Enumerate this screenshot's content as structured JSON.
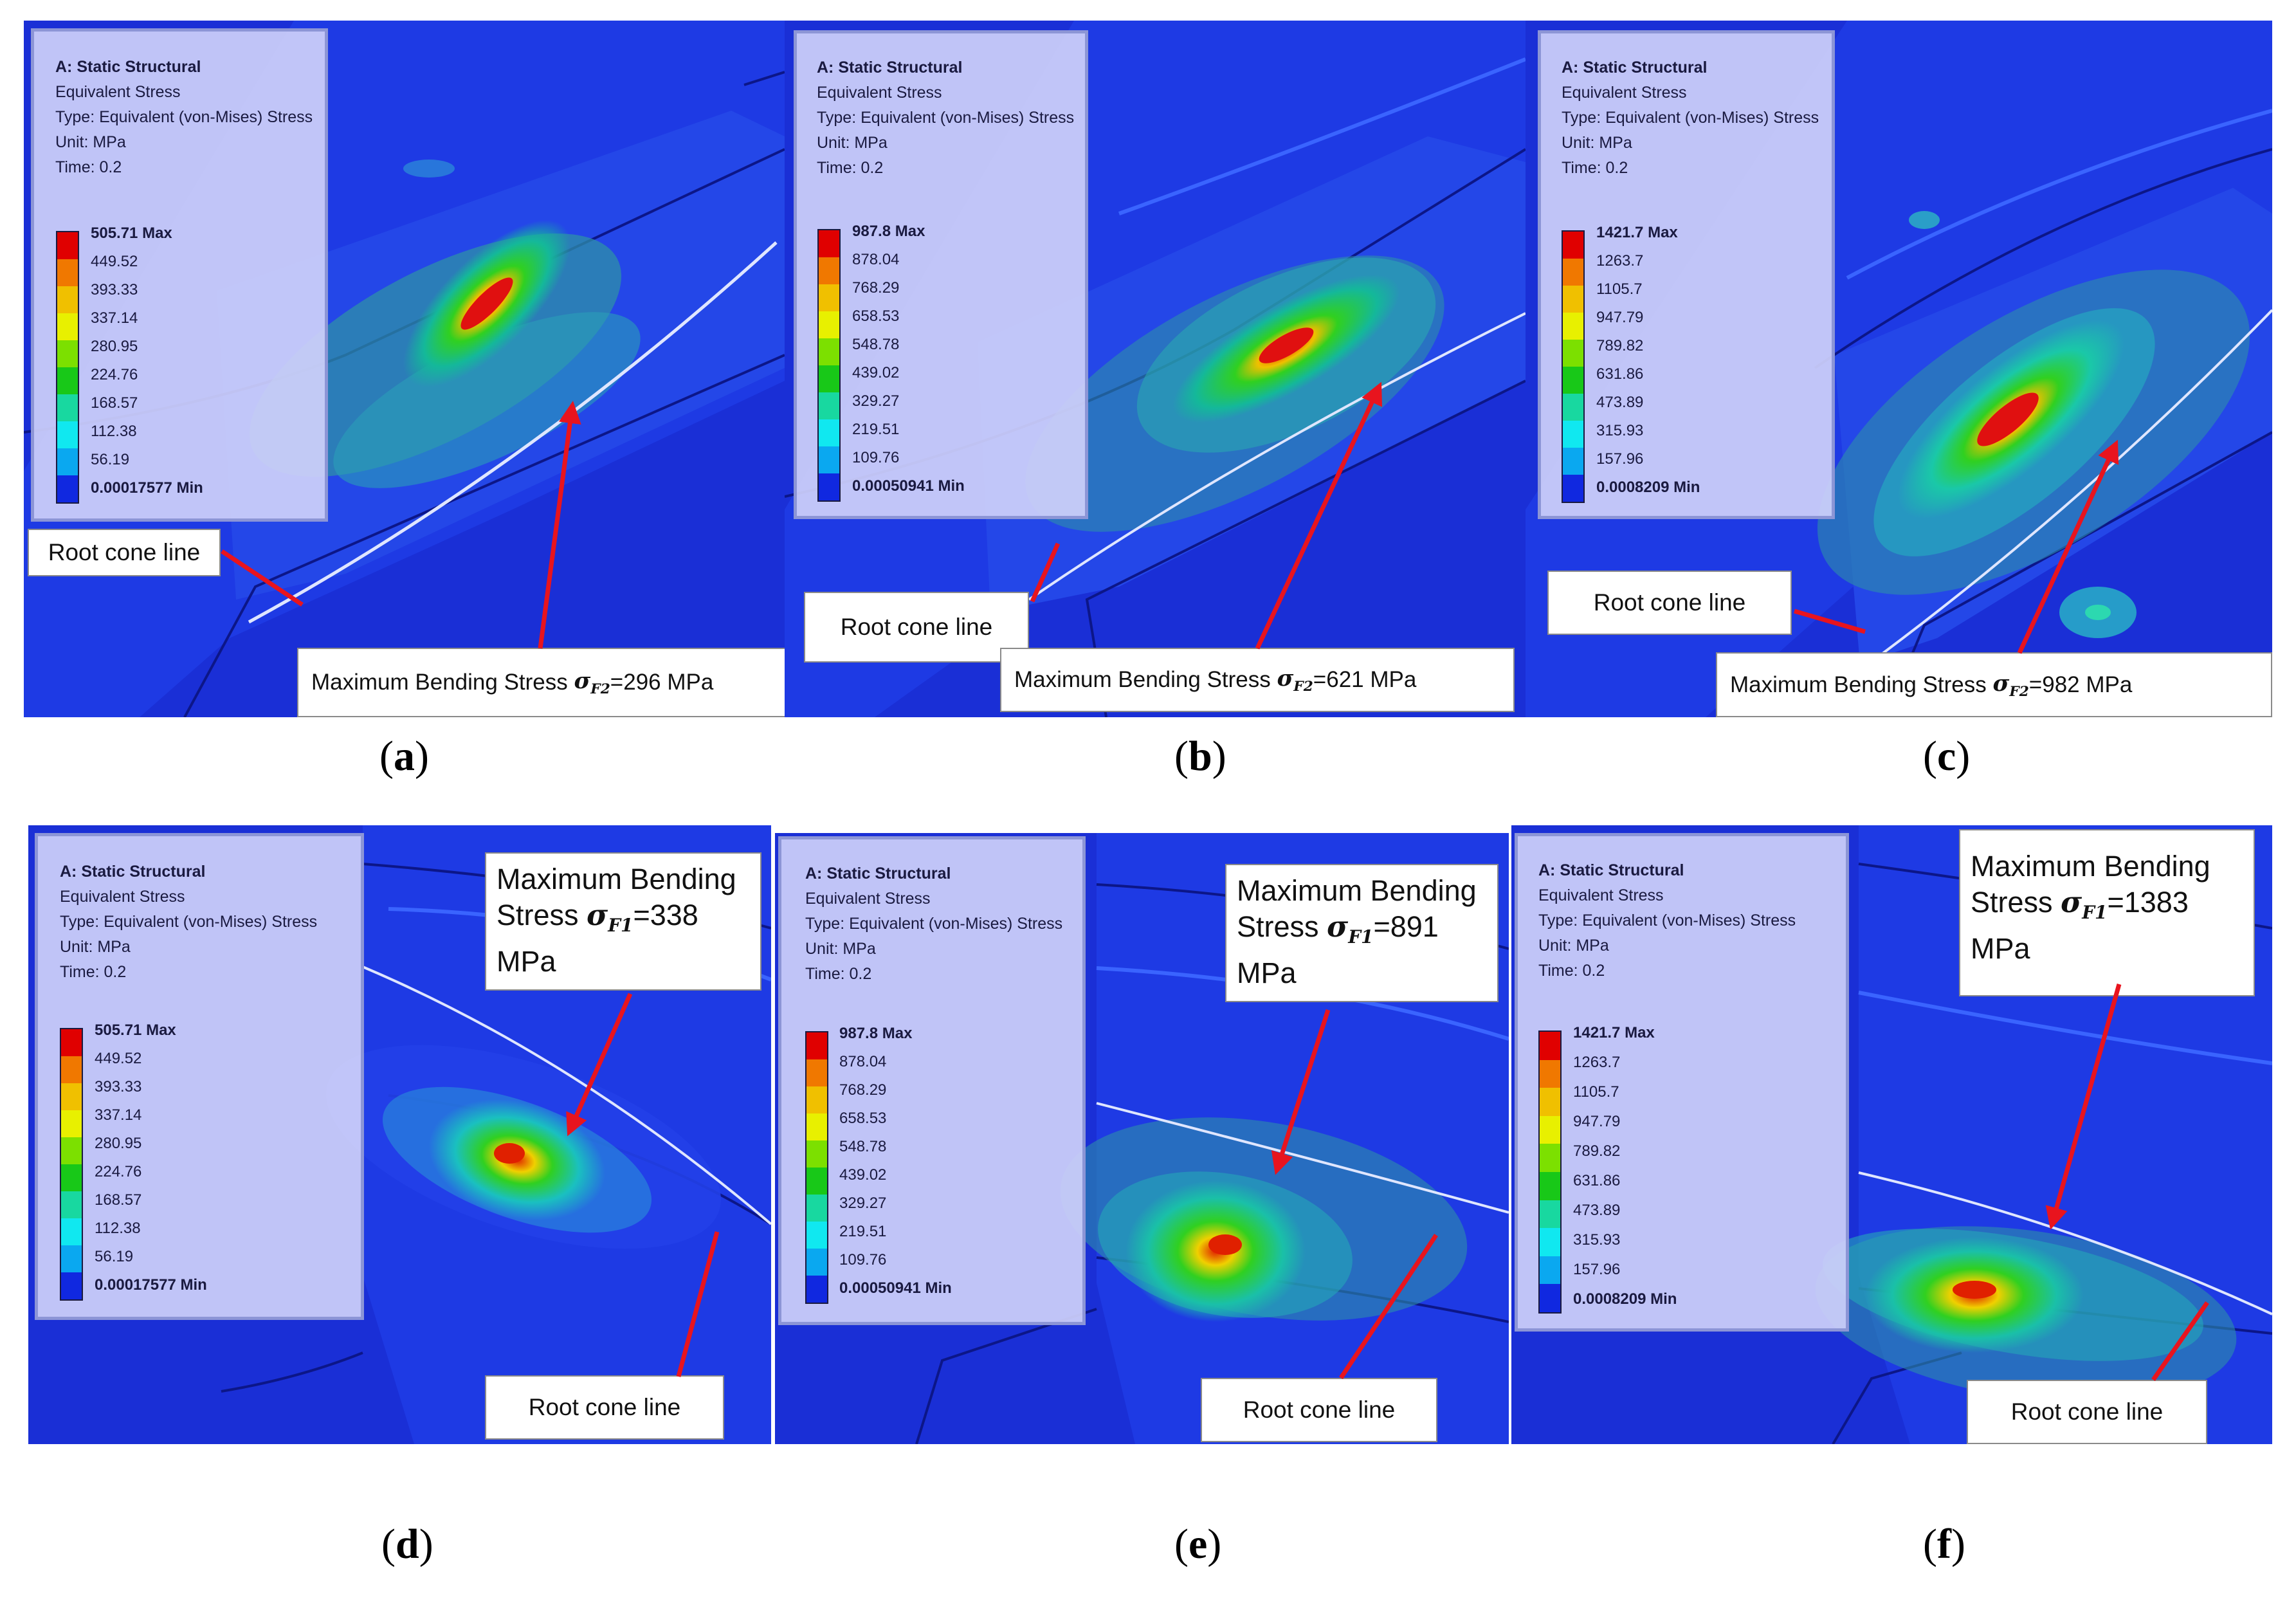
{
  "panels": [
    {
      "id": "a",
      "caption_letter": "a",
      "legend": {
        "title": "A: Static Structural",
        "subtitle": "Equivalent Stress",
        "type": "Type: Equivalent (von-Mises) Stress",
        "unit": "Unit: MPa",
        "time": "Time: 0.2",
        "max": "505.71 Max",
        "levels": [
          "449.52",
          "393.33",
          "337.14",
          "280.95",
          "224.76",
          "168.57",
          "112.38",
          "56.19"
        ],
        "min": "0.00017577 Min"
      },
      "root_label": "Root cone line",
      "stress_prefix": "Maximum Bending Stress ",
      "stress_sub": "F2",
      "stress_value": "=296 MPa"
    },
    {
      "id": "b",
      "caption_letter": "b",
      "legend": {
        "title": "A: Static Structural",
        "subtitle": "Equivalent Stress",
        "type": "Type: Equivalent (von-Mises) Stress",
        "unit": "Unit: MPa",
        "time": "Time: 0.2",
        "max": "987.8 Max",
        "levels": [
          "878.04",
          "768.29",
          "658.53",
          "548.78",
          "439.02",
          "329.27",
          "219.51",
          "109.76"
        ],
        "min": "0.00050941 Min"
      },
      "root_label": "Root cone line",
      "stress_prefix": "Maximum Bending Stress ",
      "stress_sub": "F2",
      "stress_value": "=621 MPa"
    },
    {
      "id": "c",
      "caption_letter": "c",
      "legend": {
        "title": "A: Static Structural",
        "subtitle": "Equivalent Stress",
        "type": "Type: Equivalent (von-Mises) Stress",
        "unit": "Unit: MPa",
        "time": "Time: 0.2",
        "max": "1421.7 Max",
        "levels": [
          "1263.7",
          "1105.7",
          "947.79",
          "789.82",
          "631.86",
          "473.89",
          "315.93",
          "157.96"
        ],
        "min": "0.0008209 Min"
      },
      "root_label": "Root cone line",
      "stress_prefix": "Maximum Bending Stress ",
      "stress_sub": "F2",
      "stress_value": "=982 MPa"
    },
    {
      "id": "d",
      "caption_letter": "d",
      "legend": {
        "title": "A: Static Structural",
        "subtitle": "Equivalent Stress",
        "type": "Type: Equivalent (von-Mises) Stress",
        "unit": "Unit: MPa",
        "time": "Time: 0.2",
        "max": "505.71 Max",
        "levels": [
          "449.52",
          "393.33",
          "337.14",
          "280.95",
          "224.76",
          "168.57",
          "112.38",
          "56.19"
        ],
        "min": "0.00017577 Min"
      },
      "root_label": "Root cone line",
      "stress_line1": "Maximum Bending",
      "stress_prefix": "Stress ",
      "stress_sub": "F1",
      "stress_value": "=338",
      "stress_unit": "MPa"
    },
    {
      "id": "e",
      "caption_letter": "e",
      "legend": {
        "title": "A: Static Structural",
        "subtitle": "Equivalent Stress",
        "type": "Type: Equivalent (von-Mises) Stress",
        "unit": "Unit: MPa",
        "time": "Time: 0.2",
        "max": "987.8 Max",
        "levels": [
          "878.04",
          "768.29",
          "658.53",
          "548.78",
          "439.02",
          "329.27",
          "219.51",
          "109.76"
        ],
        "min": "0.00050941 Min"
      },
      "root_label": "Root cone line",
      "stress_line1": "Maximum Bending",
      "stress_prefix": "Stress ",
      "stress_sub": "F1",
      "stress_value": "=891",
      "stress_unit": "MPa"
    },
    {
      "id": "f",
      "caption_letter": "f",
      "legend": {
        "title": "A: Static Structural",
        "subtitle": "Equivalent Stress",
        "type": "Type: Equivalent (von-Mises) Stress",
        "unit": "Unit: MPa",
        "time": "Time: 0.2",
        "max": "1421.7 Max",
        "levels": [
          "1263.7",
          "1105.7",
          "947.79",
          "789.82",
          "631.86",
          "473.89",
          "315.93",
          "157.96"
        ],
        "min": "0.0008209 Min"
      },
      "root_label": "Root cone line",
      "stress_line1": "Maximum Bending",
      "stress_prefix": "Stress ",
      "stress_sub": "F1",
      "stress_value": "=1383",
      "stress_unit": "MPa"
    }
  ],
  "sigma_symbol": "σ",
  "colors": {
    "background": "#1a2fd6",
    "legend_bg": "#cdd0fa",
    "arrow": "#e8141e",
    "root_line": "#dfe6ff"
  },
  "colorbar": [
    "#e00000",
    "#f07800",
    "#f0c000",
    "#e8f000",
    "#7ce000",
    "#18c818",
    "#18d8a0",
    "#10e8f0",
    "#0aa8f0",
    "#1028e0"
  ]
}
